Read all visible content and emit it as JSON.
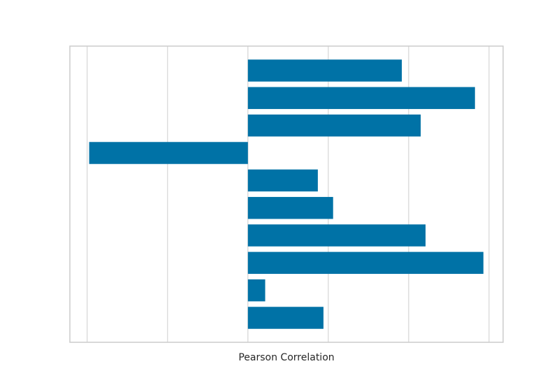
{
  "chart_data": {
    "type": "barh",
    "xlabel": "Pearson Correlation",
    "categories": [
      null,
      null,
      null,
      null,
      null,
      null,
      null,
      null,
      null,
      null
    ],
    "values": [
      0.383,
      0.565,
      0.43,
      -0.395,
      0.174,
      0.212,
      0.442,
      0.586,
      0.043,
      0.188
    ],
    "color": "#0072a6",
    "xlim": [
      -0.443,
      0.635
    ],
    "xticks": [
      -0.4,
      -0.2,
      0,
      0.2,
      0.4,
      0.6
    ],
    "grid": true
  }
}
